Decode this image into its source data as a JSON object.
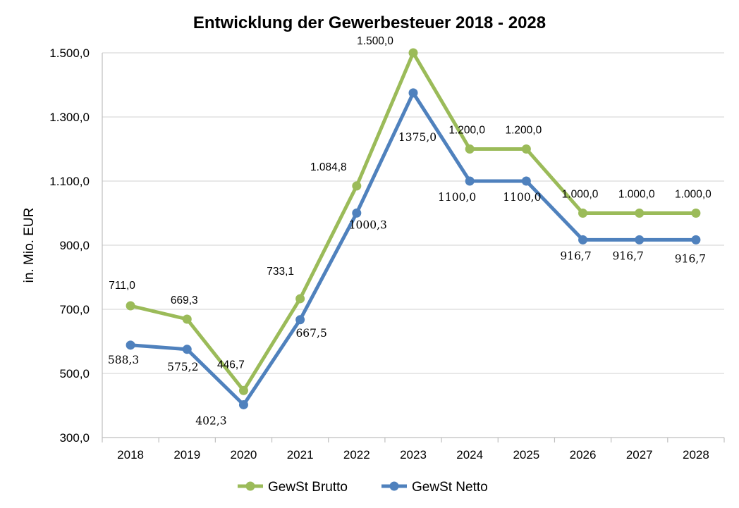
{
  "chart_data": {
    "type": "line",
    "title": "Entwicklung der Gewerbesteuer 2018 - 2028",
    "ylabel": "in. Mio. EUR",
    "xlabel": "",
    "categories": [
      "2018",
      "2019",
      "2020",
      "2021",
      "2022",
      "2023",
      "2024",
      "2025",
      "2026",
      "2027",
      "2028"
    ],
    "ylim": [
      300,
      1500
    ],
    "yticks": [
      300,
      500,
      700,
      900,
      1100,
      1300,
      1500
    ],
    "ytick_labels": [
      "300,0",
      "500,0",
      "700,0",
      "900,0",
      "1.100,0",
      "1.300,0",
      "1.500,0"
    ],
    "grid": true,
    "legend_position": "bottom",
    "series": [
      {
        "name": "GewSt Brutto",
        "color": "#9bbb59",
        "values": [
          711.0,
          669.3,
          446.7,
          733.1,
          1084.8,
          1500.0,
          1200.0,
          1200.0,
          1000.0,
          1000.0,
          1000.0
        ],
        "labels": [
          "711,0",
          "669,3",
          "446,7",
          "733,1",
          "1.084,8",
          "1.500,0",
          "1.200,0",
          "1.200,0",
          "1.000,0",
          "1.000,0",
          "1.000,0"
        ]
      },
      {
        "name": "GewSt Netto",
        "color": "#4f81bd",
        "values": [
          588.3,
          575.2,
          402.3,
          667.5,
          1000.3,
          1375.0,
          1100.0,
          1100.0,
          916.7,
          916.7,
          916.7
        ],
        "labels": [
          "588,3",
          "575,2",
          "402,3",
          "667,5",
          "1000,3",
          "1375,0",
          "1100,0",
          "1100,0",
          "916,7",
          "916,7",
          "916,7"
        ]
      }
    ]
  }
}
